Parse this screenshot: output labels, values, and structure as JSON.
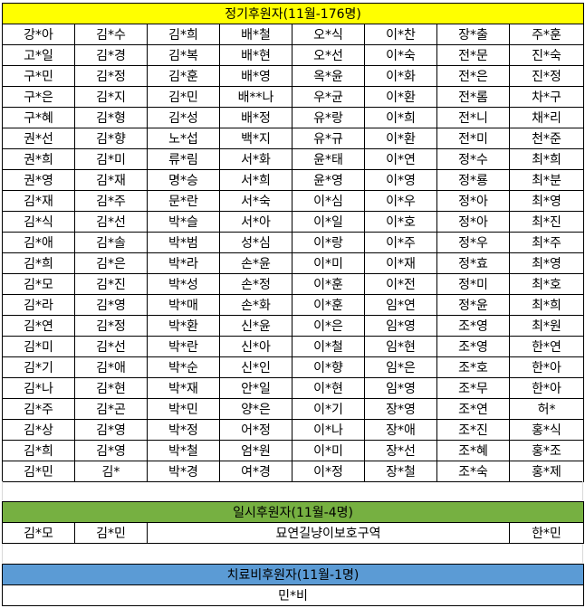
{
  "regular": {
    "title": "정기후원자(11월-176명)",
    "rows": [
      [
        "강*아",
        "김*수",
        "김*희",
        "배*철",
        "오*식",
        "이*찬",
        "장*출",
        "주*훈"
      ],
      [
        "고*일",
        "김*경",
        "김*복",
        "배*현",
        "오*선",
        "이*숙",
        "전*문",
        "진*숙"
      ],
      [
        "구*민",
        "김*정",
        "김*훈",
        "배*영",
        "옥*윤",
        "이*화",
        "전*은",
        "진*정"
      ],
      [
        "구*은",
        "김*지",
        "김*민",
        "배**나",
        "우*균",
        "이*환",
        "전*롬",
        "차*구"
      ],
      [
        "구*혜",
        "김*형",
        "김*성",
        "배*정",
        "유*랑",
        "이*희",
        "전*니",
        "채*리"
      ],
      [
        "권*선",
        "김*향",
        "노*섭",
        "백*지",
        "유*규",
        "이*환",
        "전*미",
        "천*준"
      ],
      [
        "권*희",
        "김*미",
        "류*림",
        "서*화",
        "윤*태",
        "이*연",
        "정*수",
        "최*희"
      ],
      [
        "권*영",
        "김*재",
        "명*승",
        "서*희",
        "윤*영",
        "이*영",
        "정*룡",
        "최*분"
      ],
      [
        "김*재",
        "김*주",
        "문*란",
        "서*숙",
        "이*심",
        "이*우",
        "정*아",
        "최*영"
      ],
      [
        "김*식",
        "김*선",
        "박*슬",
        "서*아",
        "이*일",
        "이*호",
        "정*아",
        "최*진"
      ],
      [
        "김*애",
        "김*솔",
        "박*범",
        "성*심",
        "이*랑",
        "이*주",
        "정*우",
        "최*주"
      ],
      [
        "김*희",
        "김*은",
        "박*라",
        "손*윤",
        "이*미",
        "이*재",
        "정*효",
        "최*영"
      ],
      [
        "김*모",
        "김*진",
        "박*성",
        "손*정",
        "이*훈",
        "이*전",
        "정*미",
        "최*호"
      ],
      [
        "김*라",
        "김*영",
        "박*매",
        "손*화",
        "이*훈",
        "임*연",
        "정*윤",
        "최*희"
      ],
      [
        "김*연",
        "김*정",
        "박*환",
        "신*윤",
        "이*은",
        "임*영",
        "조*영",
        "최*원"
      ],
      [
        "김*미",
        "김*선",
        "박*란",
        "신*아",
        "이*철",
        "임*현",
        "조*영",
        "한*연"
      ],
      [
        "김*기",
        "김*애",
        "박*순",
        "신*인",
        "이*향",
        "임*은",
        "조*호",
        "한*아"
      ],
      [
        "김*나",
        "김*현",
        "박*재",
        "안*일",
        "이*현",
        "임*영",
        "조*무",
        "한*아"
      ],
      [
        "김*주",
        "김*곤",
        "박*민",
        "양*은",
        "이*기",
        "장*영",
        "조*연",
        "허*"
      ],
      [
        "김*상",
        "김*영",
        "박*정",
        "어*정",
        "이*나",
        "장*애",
        "조*진",
        "홍*식"
      ],
      [
        "김*희",
        "김*영",
        "박*철",
        "엄*원",
        "이*미",
        "장*선",
        "조*혜",
        "홍*조"
      ],
      [
        "김*민",
        "김*",
        "박*경",
        "여*경",
        "이*정",
        "장*철",
        "조*숙",
        "홍*제"
      ]
    ]
  },
  "temporary": {
    "title": "일시후원자(11월-4명)",
    "col1": "김*모",
    "col2": "김*민",
    "middle": "묘연길냥이보호구역",
    "col8": "한*민"
  },
  "medical": {
    "title": "치료비후원자(11월-1명)",
    "donor": "민*비"
  },
  "colors": {
    "regular_header": "#ffff00",
    "temporary_header": "#76b041",
    "medical_header": "#5b9bd5"
  }
}
